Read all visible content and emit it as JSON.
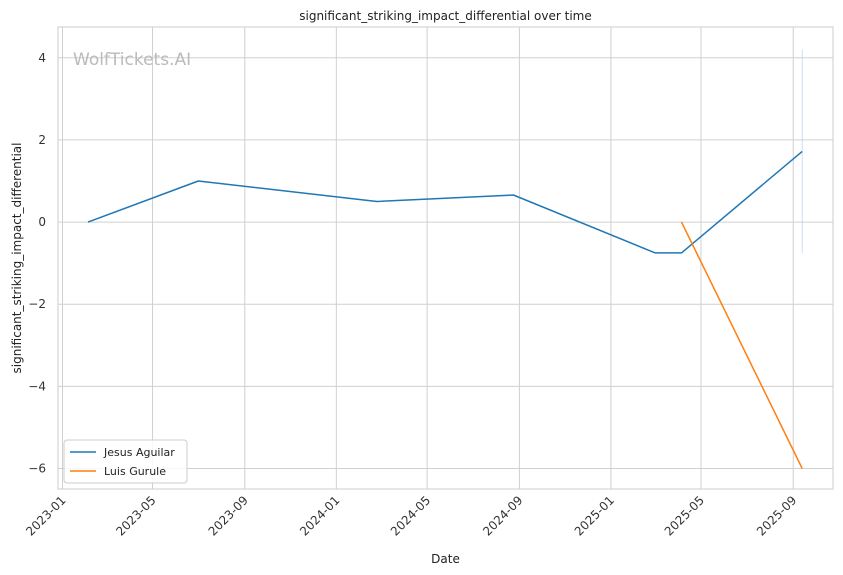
{
  "chart_data": {
    "type": "line",
    "title": "significant_striking_impact_differential over time",
    "xlabel": "Date",
    "ylabel": "significant_striking_impact_differential",
    "watermark": "WolfTickets.AI",
    "x_ticks": [
      "2023-01",
      "2023-05",
      "2023-09",
      "2024-01",
      "2024-05",
      "2024-09",
      "2025-01",
      "2025-05",
      "2025-09"
    ],
    "y_ticks": [
      4,
      2,
      0,
      -2,
      -4,
      -6
    ],
    "xlim": [
      "2022-12-26",
      "2025-10-24"
    ],
    "ylim": [
      -6.5,
      4.75
    ],
    "grid": true,
    "legend_position": "lower-left",
    "series": [
      {
        "name": "Jesus Aguilar",
        "color": "#1f77b4",
        "points": [
          {
            "x": "2023-02-04",
            "y": 0
          },
          {
            "x": "2023-07-01",
            "y": 1.0
          },
          {
            "x": "2024-02-24",
            "y": 0.5
          },
          {
            "x": "2024-08-24",
            "y": 0.66
          },
          {
            "x": "2025-03-01",
            "y": -0.75
          },
          {
            "x": "2025-04-05",
            "y": -0.75
          },
          {
            "x": "2025-09-13",
            "y": 1.72
          }
        ]
      },
      {
        "name": "Luis Gurule",
        "color": "#ff7f0e",
        "points": [
          {
            "x": "2025-04-05",
            "y": 0
          },
          {
            "x": "2025-09-13",
            "y": -6.0
          }
        ]
      }
    ],
    "vertical_band": {
      "x": "2025-09-13",
      "y_range": [
        -0.75,
        4.2
      ],
      "color": "#aec7e8"
    }
  }
}
